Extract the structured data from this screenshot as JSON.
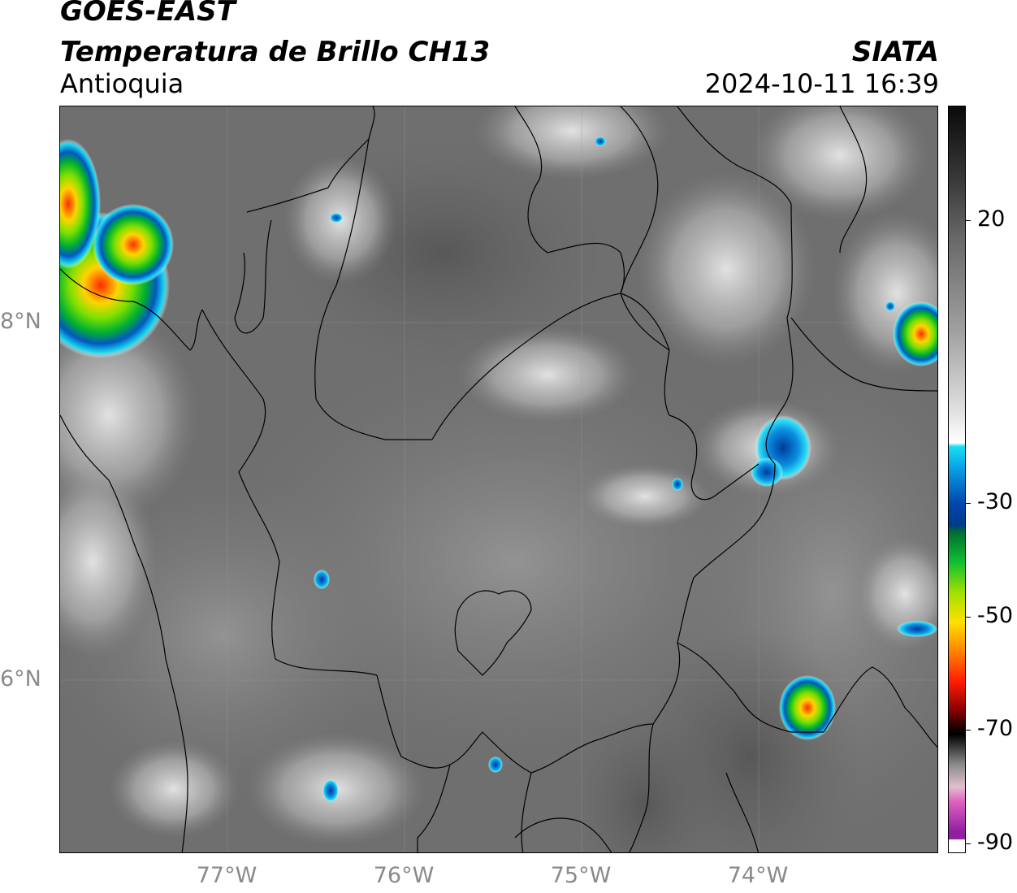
{
  "header": {
    "satellite": "GOES-EAST",
    "product": "Temperatura de Brillo CH13",
    "region": "Antioquia",
    "organization": "SIATA",
    "datetime": "2024-10-11 16:39"
  },
  "map": {
    "latitude_labels": [
      "8°N",
      "6°N"
    ],
    "longitude_labels": [
      "77°W",
      "76°W",
      "75°W",
      "74°W"
    ],
    "gridlines": true,
    "background_field": "brightness temperature (grayscale)"
  },
  "colorbar": {
    "tick_labels": [
      "20",
      "-30",
      "-50",
      "-70",
      "-90"
    ],
    "tick_values": [
      20,
      -30,
      -50,
      -70,
      -90
    ],
    "range": [
      -90,
      30
    ]
  }
}
